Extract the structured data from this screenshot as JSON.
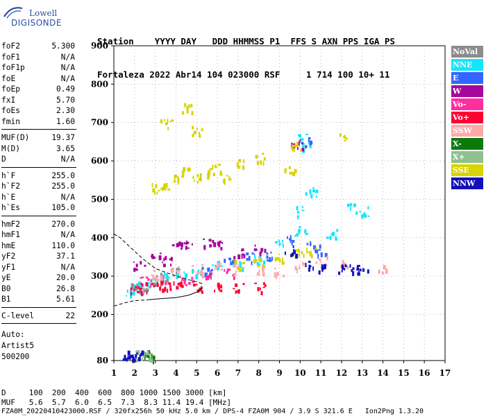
{
  "logo": {
    "line1": "Lowell",
    "line2": "DIGISONDE"
  },
  "header": {
    "labels": "Station    YYYY DAY   DDD HHMMSS P1  FFS S AXN PPS IGA PS",
    "values": "Fortaleza 2022 Abr14 104 023000 RSF     1 714 100 10+ 11"
  },
  "params": [
    {
      "key": "foF2",
      "value": "5.300"
    },
    {
      "key": "foF1",
      "value": "N/A"
    },
    {
      "key": "foF1p",
      "value": "N/A"
    },
    {
      "key": "foE",
      "value": "N/A"
    },
    {
      "key": "foEp",
      "value": "0.49"
    },
    {
      "key": "fxI",
      "value": "5.70"
    },
    {
      "key": "foEs",
      "value": "2.30"
    },
    {
      "key": "fmin",
      "value": "1.60"
    },
    {
      "key": "MUF(D)",
      "value": "19.37"
    },
    {
      "key": "M(D)",
      "value": "3.65"
    },
    {
      "key": "D",
      "value": "N/A"
    },
    {
      "key": "h`F",
      "value": "255.0"
    },
    {
      "key": "h`F2",
      "value": "255.0"
    },
    {
      "key": "h`E",
      "value": "N/A"
    },
    {
      "key": "h`Es",
      "value": "105.0"
    },
    {
      "key": "hmF2",
      "value": "270.0"
    },
    {
      "key": "hmF1",
      "value": "N/A"
    },
    {
      "key": "hmE",
      "value": "110.0"
    },
    {
      "key": "yF2",
      "value": "37.1"
    },
    {
      "key": "yF1",
      "value": "N/A"
    },
    {
      "key": "yE",
      "value": "20.0"
    },
    {
      "key": "B0",
      "value": "26.8"
    },
    {
      "key": "B1",
      "value": "5.61"
    },
    {
      "key": "C-level",
      "value": "22"
    }
  ],
  "autoscaler": {
    "line1": "Auto:",
    "line2": "Artist5",
    "line3": "500200"
  },
  "legend": [
    {
      "label": "NoVal",
      "color": "#8c8c8c"
    },
    {
      "label": "NNE",
      "color": "#12e6ff"
    },
    {
      "label": "E",
      "color": "#3366ff"
    },
    {
      "label": "W",
      "color": "#a5079c"
    },
    {
      "label": "Vo-",
      "color": "#ff2ea0"
    },
    {
      "label": "Vo+",
      "color": "#ff0033"
    },
    {
      "label": "SSW",
      "color": "#ffaaaa"
    },
    {
      "label": "X-",
      "color": "#0b7a0b"
    },
    {
      "label": "X+",
      "color": "#8fc08f"
    },
    {
      "label": "SSE",
      "color": "#d7d400"
    },
    {
      "label": "NNW",
      "color": "#1010bb"
    }
  ],
  "footer": {
    "d_row": "D     100  200  400  600  800 1000 1500 3000 [km]",
    "muf_row": "MUF   5.6  5.7  6.0  6.5  7.3  8.3 11.4 19.4 [MHz]",
    "file_row": "FZA0M_20220410423000.RSF / 320fx256h 50 kHz 5.0 km / DPS-4 FZA0M 904 / 3.9 S 321.6 E   Ion2Png 1.3.20"
  },
  "chart_data": {
    "type": "scatter",
    "title": "",
    "xlabel": "",
    "ylabel": "",
    "xlim": [
      1,
      17
    ],
    "ylim": [
      80,
      900
    ],
    "x_ticks": [
      1,
      2,
      3,
      4,
      5,
      6,
      7,
      8,
      9,
      10,
      11,
      12,
      13,
      14,
      15,
      16,
      17
    ],
    "y_ticks": [
      80,
      200,
      300,
      400,
      500,
      600,
      700,
      800,
      900
    ],
    "grid": "dashed",
    "legend_position": "right",
    "clusters": [
      {
        "name": "NoVal",
        "points": [
          [
            2.0,
            270
          ],
          [
            2.5,
            265
          ],
          [
            3.0,
            290
          ],
          [
            3.5,
            300
          ],
          [
            4.0,
            310
          ]
        ]
      },
      {
        "name": "NNE",
        "points": [
          [
            1.8,
            260
          ],
          [
            2.2,
            275
          ],
          [
            2.8,
            285
          ],
          [
            3.5,
            300
          ],
          [
            4.2,
            310
          ],
          [
            5.0,
            315
          ],
          [
            6.0,
            330
          ],
          [
            7.0,
            330
          ],
          [
            8.0,
            345
          ],
          [
            9.0,
            390
          ],
          [
            10.0,
            420
          ],
          [
            10.0,
            470
          ],
          [
            10.5,
            520
          ],
          [
            11.5,
            410
          ],
          [
            12.5,
            480
          ],
          [
            13.0,
            470
          ],
          [
            10.3,
            640
          ],
          [
            10.0,
            660
          ]
        ]
      },
      {
        "name": "E",
        "points": [
          [
            5.5,
            320
          ],
          [
            6.5,
            340
          ],
          [
            7.5,
            350
          ],
          [
            8.5,
            355
          ],
          [
            9.5,
            400
          ],
          [
            10.5,
            380
          ],
          [
            11.0,
            370
          ],
          [
            10.2,
            650
          ]
        ]
      },
      {
        "name": "W",
        "points": [
          [
            3.0,
            360
          ],
          [
            3.5,
            340
          ],
          [
            4.0,
            380
          ],
          [
            4.5,
            380
          ],
          [
            5.5,
            390
          ],
          [
            6.0,
            380
          ],
          [
            7.0,
            360
          ],
          [
            8.0,
            375
          ],
          [
            2.2,
            330
          ],
          [
            9.8,
            640
          ]
        ]
      },
      {
        "name": "Vo-",
        "points": [
          [
            2.5,
            290
          ],
          [
            3.5,
            280
          ],
          [
            4.5,
            285
          ],
          [
            5.5,
            300
          ],
          [
            6.5,
            310
          ]
        ]
      },
      {
        "name": "Vo+",
        "points": [
          [
            2.0,
            268
          ],
          [
            2.5,
            272
          ],
          [
            3.0,
            275
          ],
          [
            4.0,
            276
          ],
          [
            5.0,
            272
          ],
          [
            6.0,
            272
          ],
          [
            7.0,
            270
          ],
          [
            8.0,
            272
          ],
          [
            3.5,
            278
          ]
        ]
      },
      {
        "name": "SSW",
        "points": [
          [
            3.0,
            305
          ],
          [
            4.0,
            315
          ],
          [
            5.0,
            320
          ],
          [
            6.0,
            325
          ],
          [
            7.0,
            320
          ],
          [
            8.0,
            318
          ],
          [
            9.0,
            310
          ],
          [
            10.0,
            325
          ],
          [
            11.0,
            340
          ],
          [
            12.0,
            330
          ],
          [
            14.0,
            320
          ]
        ]
      },
      {
        "name": "X-",
        "points": [
          [
            2.5,
            95
          ],
          [
            2.7,
            95
          ]
        ]
      },
      {
        "name": "X+",
        "points": [
          [
            2.3,
            95
          ],
          [
            2.6,
            95
          ]
        ]
      },
      {
        "name": "SSE",
        "points": [
          [
            3.0,
            530
          ],
          [
            3.5,
            540
          ],
          [
            4.0,
            560
          ],
          [
            4.5,
            580
          ],
          [
            5.0,
            560
          ],
          [
            5.5,
            570
          ],
          [
            6.0,
            580
          ],
          [
            7.0,
            595
          ],
          [
            8.0,
            610
          ],
          [
            3.5,
            700
          ],
          [
            4.5,
            740
          ],
          [
            5.0,
            680
          ],
          [
            6.5,
            560
          ],
          [
            7.0,
            330
          ],
          [
            8.0,
            340
          ],
          [
            9.0,
            350
          ],
          [
            10.0,
            360
          ],
          [
            9.5,
            580
          ],
          [
            10.5,
            370
          ],
          [
            12.0,
            660
          ],
          [
            9.8,
            640
          ]
        ]
      },
      {
        "name": "NNW",
        "points": [
          [
            1.6,
            95
          ],
          [
            1.9,
            95
          ],
          [
            2.1,
            95
          ],
          [
            9.5,
            370
          ],
          [
            10.5,
            330
          ],
          [
            11.0,
            325
          ],
          [
            12.0,
            320
          ],
          [
            12.5,
            320
          ],
          [
            13.0,
            320
          ]
        ]
      }
    ],
    "curves": [
      {
        "name": "profile-upper",
        "style": "dashed",
        "points": [
          [
            1.0,
            410
          ],
          [
            1.3,
            400
          ],
          [
            1.8,
            375
          ],
          [
            2.4,
            345
          ],
          [
            3.0,
            320
          ],
          [
            3.5,
            310
          ],
          [
            4.0,
            300
          ],
          [
            4.5,
            292
          ],
          [
            5.0,
            285
          ],
          [
            5.3,
            280
          ]
        ]
      },
      {
        "name": "profile-lower",
        "style": "dashed",
        "points": [
          [
            1.0,
            222
          ],
          [
            1.5,
            230
          ],
          [
            2.0,
            236
          ],
          [
            2.6,
            238
          ]
        ]
      },
      {
        "name": "profile-trace",
        "style": "solid",
        "points": [
          [
            2.6,
            238
          ],
          [
            3.2,
            241
          ],
          [
            4.0,
            244
          ],
          [
            4.6,
            250
          ],
          [
            5.0,
            258
          ],
          [
            5.3,
            270
          ]
        ]
      }
    ]
  }
}
